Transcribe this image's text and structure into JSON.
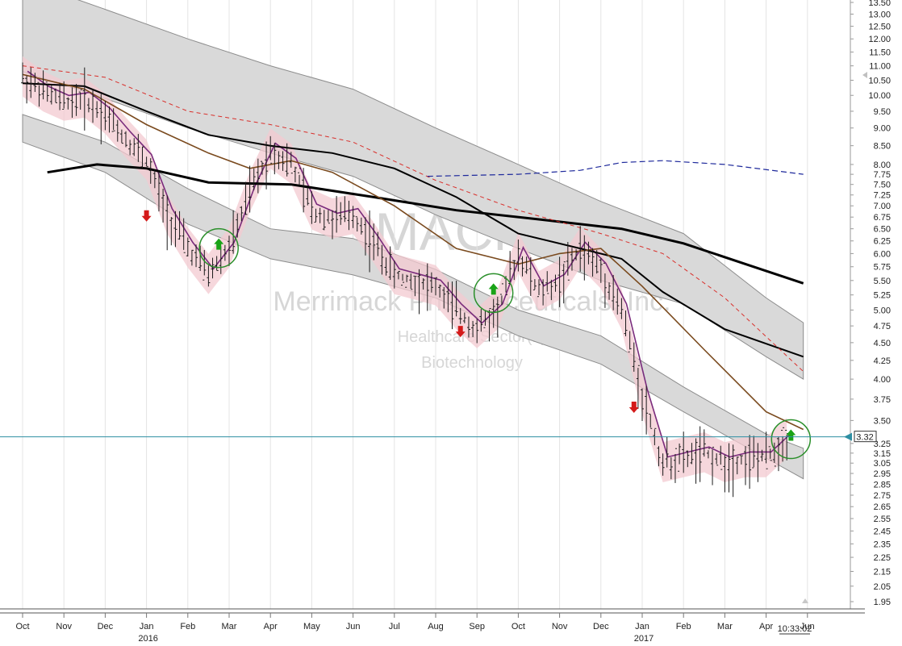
{
  "colors": {
    "price_bars": "#1a1a1a",
    "channel_fill": "#d9d9d9",
    "channel_stroke": "#8c8c8c",
    "ma_black": "#000000",
    "ma_brown": "#7a4a1e",
    "ma_red_dashed": "#d9302c",
    "ma_blue_dashed": "#1f2a9c",
    "envelope_pink": "#f3c9d0",
    "envelope_purple": "#7a2b7c",
    "price_line": "#2e8fa3",
    "up_arrow": "#1aa318",
    "down_arrow": "#d41a1a",
    "circle": "#2a8f2a",
    "current_price_bg": "#ffffff"
  },
  "watermark": {
    "symbol": "MACK",
    "company": "Merrimack Pharmaceuticals, Inc.",
    "sector": "Healthcare Sector(1)",
    "industry": "Biotechnology"
  },
  "current_price_label": "3.32",
  "time_label": "10:33:02",
  "chart_data": {
    "type": "line",
    "title": "",
    "y_scale": "log",
    "ylim": [
      1.95,
      13.5
    ],
    "y_ticks": [
      "13.50",
      "13.00",
      "12.50",
      "12.00",
      "11.50",
      "11.00",
      "10.50",
      "10.00",
      "9.50",
      "9.00",
      "8.50",
      "8.00",
      "7.75",
      "7.50",
      "7.25",
      "7.00",
      "6.75",
      "6.50",
      "6.25",
      "6.00",
      "5.75",
      "5.50",
      "5.25",
      "5.00",
      "4.75",
      "4.50",
      "4.25",
      "4.00",
      "3.75",
      "3.50",
      "3.25",
      "3.15",
      "3.05",
      "2.95",
      "2.85",
      "2.75",
      "2.65",
      "2.55",
      "2.45",
      "2.35",
      "2.25",
      "2.15",
      "2.05",
      "1.95"
    ],
    "x_ticks": [
      {
        "label": "Oct",
        "year": ""
      },
      {
        "label": "Nov",
        "year": ""
      },
      {
        "label": "Dec",
        "year": ""
      },
      {
        "label": "Jan",
        "year": "2016"
      },
      {
        "label": "Feb",
        "year": ""
      },
      {
        "label": "Mar",
        "year": ""
      },
      {
        "label": "Apr",
        "year": ""
      },
      {
        "label": "May",
        "year": ""
      },
      {
        "label": "Jun",
        "year": ""
      },
      {
        "label": "Jul",
        "year": ""
      },
      {
        "label": "Aug",
        "year": ""
      },
      {
        "label": "Sep",
        "year": ""
      },
      {
        "label": "Oct",
        "year": ""
      },
      {
        "label": "Nov",
        "year": ""
      },
      {
        "label": "Dec",
        "year": ""
      },
      {
        "label": "Jan",
        "year": "2017"
      },
      {
        "label": "Feb",
        "year": ""
      },
      {
        "label": "Mar",
        "year": ""
      },
      {
        "label": "Apr",
        "year": ""
      },
      {
        "label": "Jun",
        "year": ""
      }
    ],
    "price_series": {
      "name": "",
      "points": [
        [
          0,
          10.6
        ],
        [
          0.5,
          10.1
        ],
        [
          1,
          9.8
        ],
        [
          1.5,
          9.9
        ],
        [
          2,
          9.4
        ],
        [
          2.5,
          8.7
        ],
        [
          3,
          8.1
        ],
        [
          3.5,
          6.8
        ],
        [
          4,
          6.1
        ],
        [
          4.5,
          5.6
        ],
        [
          5,
          6.1
        ],
        [
          5.5,
          7.3
        ],
        [
          6,
          8.4
        ],
        [
          6.5,
          8.0
        ],
        [
          7,
          6.9
        ],
        [
          7.5,
          6.7
        ],
        [
          8,
          6.8
        ],
        [
          8.5,
          6.2
        ],
        [
          9,
          5.6
        ],
        [
          9.5,
          5.5
        ],
        [
          10,
          5.4
        ],
        [
          10.5,
          5.0
        ],
        [
          11,
          4.7
        ],
        [
          11.5,
          5.0
        ],
        [
          12,
          6.0
        ],
        [
          12.5,
          5.3
        ],
        [
          13,
          5.5
        ],
        [
          13.5,
          6.1
        ],
        [
          14,
          5.7
        ],
        [
          14.5,
          5.0
        ],
        [
          15,
          3.8
        ],
        [
          15.5,
          3.05
        ],
        [
          16,
          3.1
        ],
        [
          16.5,
          3.15
        ],
        [
          17,
          3.05
        ],
        [
          17.5,
          3.1
        ],
        [
          18,
          3.1
        ],
        [
          18.5,
          3.3
        ]
      ]
    },
    "moving_averages": [
      {
        "name": "",
        "style": "black-thick",
        "points": [
          [
            0.6,
            7.8
          ],
          [
            1.8,
            8.0
          ],
          [
            3,
            7.9
          ],
          [
            4.5,
            7.55
          ],
          [
            6.5,
            7.5
          ],
          [
            8.5,
            7.2
          ],
          [
            10.5,
            6.9
          ],
          [
            12.5,
            6.7
          ],
          [
            14.5,
            6.5
          ],
          [
            16,
            6.2
          ],
          [
            17.5,
            5.8
          ],
          [
            18.9,
            5.45
          ]
        ]
      },
      {
        "name": "",
        "style": "black",
        "points": [
          [
            0,
            10.4
          ],
          [
            1.5,
            10.3
          ],
          [
            3,
            9.5
          ],
          [
            4.5,
            8.8
          ],
          [
            6,
            8.5
          ],
          [
            7.5,
            8.3
          ],
          [
            9,
            7.9
          ],
          [
            10.5,
            7.2
          ],
          [
            12,
            6.4
          ],
          [
            13.5,
            6.1
          ],
          [
            14.5,
            5.9
          ],
          [
            15.5,
            5.3
          ],
          [
            17,
            4.7
          ],
          [
            18.9,
            4.3
          ]
        ]
      },
      {
        "name": "",
        "style": "brown",
        "points": [
          [
            0,
            10.7
          ],
          [
            1.5,
            10.2
          ],
          [
            3,
            9.1
          ],
          [
            4.5,
            8.3
          ],
          [
            5.5,
            7.9
          ],
          [
            6.5,
            8.1
          ],
          [
            7.5,
            7.8
          ],
          [
            9,
            7.0
          ],
          [
            10.5,
            6.1
          ],
          [
            12,
            5.8
          ],
          [
            13,
            6.0
          ],
          [
            14,
            6.1
          ],
          [
            15,
            5.4
          ],
          [
            16.5,
            4.4
          ],
          [
            18,
            3.6
          ],
          [
            18.9,
            3.4
          ]
        ]
      },
      {
        "name": "",
        "style": "red-dashed",
        "points": [
          [
            0,
            11.0
          ],
          [
            2,
            10.6
          ],
          [
            4,
            9.5
          ],
          [
            6,
            9.1
          ],
          [
            8,
            8.6
          ],
          [
            10,
            7.6
          ],
          [
            12,
            6.9
          ],
          [
            14,
            6.4
          ],
          [
            15.5,
            6.0
          ],
          [
            17,
            5.2
          ],
          [
            18.9,
            4.1
          ]
        ]
      },
      {
        "name": "",
        "style": "blue-dashed",
        "points": [
          [
            9.8,
            7.7
          ],
          [
            12,
            7.75
          ],
          [
            13.5,
            7.85
          ],
          [
            14.5,
            8.05
          ],
          [
            15.5,
            8.1
          ],
          [
            17,
            8.0
          ],
          [
            18.9,
            7.75
          ]
        ]
      }
    ],
    "channel": [
      {
        "upper": [
          [
            0,
            14.5
          ],
          [
            2,
            13.2
          ],
          [
            4,
            12.0
          ],
          [
            6,
            11.0
          ],
          [
            8,
            10.2
          ],
          [
            10,
            9.0
          ],
          [
            12,
            8.0
          ],
          [
            14,
            7.1
          ],
          [
            16,
            6.4
          ],
          [
            18,
            5.2
          ],
          [
            18.9,
            4.8
          ]
        ],
        "lower": [
          [
            0,
            10.8
          ],
          [
            2,
            9.9
          ],
          [
            4,
            9.0
          ],
          [
            6,
            8.3
          ],
          [
            8,
            7.7
          ],
          [
            10,
            6.8
          ],
          [
            12,
            6.1
          ],
          [
            14,
            5.5
          ],
          [
            16,
            5.1
          ],
          [
            18,
            4.3
          ],
          [
            18.9,
            4.0
          ]
        ]
      },
      {
        "upper": [
          [
            0,
            9.4
          ],
          [
            2,
            8.6
          ],
          [
            4,
            7.4
          ],
          [
            6,
            6.5
          ],
          [
            8,
            6.3
          ],
          [
            10,
            5.7
          ],
          [
            12,
            5.0
          ],
          [
            14,
            4.6
          ],
          [
            16,
            3.9
          ],
          [
            18,
            3.35
          ],
          [
            18.9,
            3.2
          ]
        ],
        "lower": [
          [
            0,
            8.6
          ],
          [
            2,
            7.8
          ],
          [
            4,
            6.6
          ],
          [
            6,
            5.9
          ],
          [
            8,
            5.6
          ],
          [
            10,
            5.2
          ],
          [
            12,
            4.6
          ],
          [
            14,
            4.2
          ],
          [
            16,
            3.6
          ],
          [
            18,
            3.1
          ],
          [
            18.9,
            2.9
          ]
        ]
      }
    ],
    "signals": [
      {
        "type": "down",
        "x": 3.0,
        "y": 6.9
      },
      {
        "type": "up",
        "x": 4.75,
        "y": 6.3,
        "circled": true
      },
      {
        "type": "down",
        "x": 10.6,
        "y": 4.75
      },
      {
        "type": "up",
        "x": 11.4,
        "y": 5.45,
        "circled": true
      },
      {
        "type": "down",
        "x": 14.8,
        "y": 3.72
      },
      {
        "type": "up",
        "x": 18.6,
        "y": 3.4,
        "circled": true
      }
    ],
    "current_price": 3.32,
    "grid": true,
    "legend": "none"
  }
}
